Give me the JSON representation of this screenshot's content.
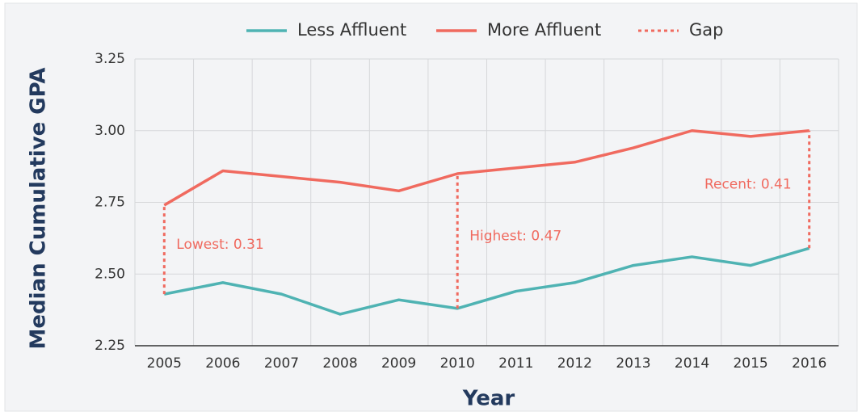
{
  "chart_data": {
    "type": "line",
    "x_label": "Year",
    "y_label": "Median Cumulative GPA",
    "categories": [
      "2005",
      "2006",
      "2007",
      "2008",
      "2009",
      "2010",
      "2011",
      "2012",
      "2013",
      "2014",
      "2015",
      "2016"
    ],
    "series": [
      {
        "name": "Less Affluent",
        "color": "#4fb3b3",
        "values": [
          2.43,
          2.47,
          2.43,
          2.36,
          2.41,
          2.38,
          2.44,
          2.47,
          2.53,
          2.56,
          2.53,
          2.59
        ]
      },
      {
        "name": "More Affluent",
        "color": "#f06a5f",
        "values": [
          2.74,
          2.86,
          2.84,
          2.82,
          2.79,
          2.85,
          2.87,
          2.89,
          2.94,
          3.0,
          2.98,
          3.0
        ]
      }
    ],
    "gap_legend": "Gap",
    "gaps": [
      {
        "x": "2005",
        "label": "Lowest: 0.31"
      },
      {
        "x": "2010",
        "label": "Highest: 0.47"
      },
      {
        "x": "2016",
        "label": "Recent: 0.41"
      }
    ],
    "ylim": [
      2.25,
      3.25
    ],
    "yticks": [
      2.25,
      {
        "value": 2.5,
        "label": "2.50"
      },
      2.75,
      {
        "value": 3.0,
        "label": "3.00"
      },
      3.25
    ],
    "grid": true
  }
}
